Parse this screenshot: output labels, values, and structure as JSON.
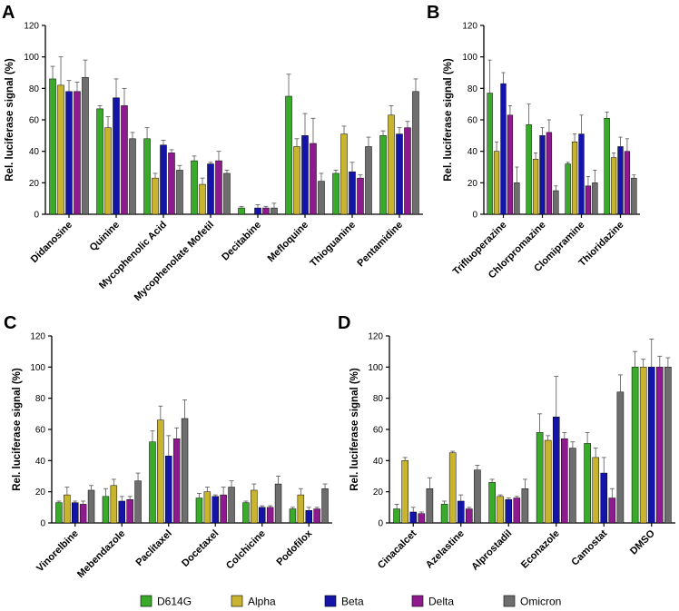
{
  "colors": {
    "D614G": "#3aaa2a",
    "Alpha": "#c8b42e",
    "Beta": "#1414a8",
    "Delta": "#8f1a8f",
    "Omicron": "#6e6e6e"
  },
  "legend": [
    "D614G",
    "Alpha",
    "Beta",
    "Delta",
    "Omicron"
  ],
  "chart_data": [
    {
      "panel": "A",
      "type": "bar",
      "ylabel": "Rel. luciferase signal (%)",
      "ylim": [
        0,
        120
      ],
      "yticks": [
        0,
        20,
        40,
        60,
        80,
        100,
        120
      ],
      "categories": [
        "Didanosine",
        "Quinine",
        "Mycophenolic Acid",
        "Mycophenolate Mofetil",
        "Decitabine",
        "Mefloquine",
        "Thioguanine",
        "Pentamidine"
      ],
      "series": [
        {
          "name": "D614G",
          "values": [
            86,
            67,
            48,
            34,
            4,
            75,
            26,
            50
          ],
          "errors": [
            8,
            2,
            7,
            3,
            1,
            14,
            2,
            3
          ]
        },
        {
          "name": "Alpha",
          "values": [
            82,
            55,
            23,
            19,
            0,
            43,
            51,
            63
          ],
          "errors": [
            18,
            7,
            3,
            4,
            0,
            5,
            5,
            6
          ]
        },
        {
          "name": "Beta",
          "values": [
            78,
            74,
            44,
            32,
            4,
            50,
            27,
            51
          ],
          "errors": [
            7,
            12,
            3,
            1,
            2,
            14,
            6,
            4
          ]
        },
        {
          "name": "Delta",
          "values": [
            78,
            69,
            39,
            34,
            4,
            45,
            23,
            55
          ],
          "errors": [
            6,
            11,
            2,
            6,
            1,
            16,
            2,
            4
          ]
        },
        {
          "name": "Omicron",
          "values": [
            87,
            48,
            28,
            26,
            4,
            21,
            43,
            78
          ],
          "errors": [
            11,
            4,
            3,
            2,
            3,
            5,
            6,
            8
          ]
        }
      ]
    },
    {
      "panel": "B",
      "type": "bar",
      "ylabel": "Rel. luciferase signal (%)",
      "ylim": [
        0,
        120
      ],
      "yticks": [
        0,
        20,
        40,
        60,
        80,
        100,
        120
      ],
      "categories": [
        "Trifluoperazine",
        "Chlorpromazine",
        "Clomipramine",
        "Thioridazine"
      ],
      "series": [
        {
          "name": "D614G",
          "values": [
            77,
            57,
            32,
            61
          ],
          "errors": [
            21,
            13,
            1,
            4
          ]
        },
        {
          "name": "Alpha",
          "values": [
            40,
            35,
            46,
            36
          ],
          "errors": [
            6,
            4,
            5,
            3
          ]
        },
        {
          "name": "Beta",
          "values": [
            83,
            50,
            51,
            43
          ],
          "errors": [
            7,
            5,
            12,
            6
          ]
        },
        {
          "name": "Delta",
          "values": [
            63,
            52,
            18,
            40
          ],
          "errors": [
            6,
            8,
            6,
            8
          ]
        },
        {
          "name": "Omicron",
          "values": [
            20,
            15,
            20,
            23
          ],
          "errors": [
            10,
            3,
            8,
            2
          ]
        }
      ]
    },
    {
      "panel": "C",
      "type": "bar",
      "ylabel": "Rel. luciferase signal (%)",
      "ylim": [
        0,
        120
      ],
      "yticks": [
        0,
        20,
        40,
        60,
        80,
        100,
        120
      ],
      "categories": [
        "Vinorelbine",
        "Mebendazole",
        "Paclitaxel",
        "Docetaxel",
        "Colchicine",
        "Podofilox"
      ],
      "series": [
        {
          "name": "D614G",
          "values": [
            13,
            17,
            52,
            16,
            13,
            9
          ],
          "errors": [
            1,
            5,
            7,
            3,
            1,
            1
          ]
        },
        {
          "name": "Alpha",
          "values": [
            18,
            24,
            66,
            20,
            21,
            18
          ],
          "errors": [
            5,
            4,
            9,
            3,
            4,
            4
          ]
        },
        {
          "name": "Beta",
          "values": [
            13,
            14,
            43,
            17,
            10,
            8
          ],
          "errors": [
            1,
            3,
            13,
            1,
            1,
            2
          ]
        },
        {
          "name": "Delta",
          "values": [
            12,
            15,
            54,
            18,
            10,
            9
          ],
          "errors": [
            2,
            2,
            7,
            5,
            1,
            1
          ]
        },
        {
          "name": "Omicron",
          "values": [
            21,
            27,
            67,
            23,
            25,
            22
          ],
          "errors": [
            3,
            5,
            12,
            4,
            5,
            3
          ]
        }
      ]
    },
    {
      "panel": "D",
      "type": "bar",
      "ylabel": "Rel. luciferase signal (%)",
      "ylim": [
        0,
        120
      ],
      "yticks": [
        0,
        20,
        40,
        60,
        80,
        100,
        120
      ],
      "categories": [
        "Cinacalcet",
        "Azelastine",
        "Alprostadil",
        "Econazole",
        "Camostat",
        "DMSO"
      ],
      "series": [
        {
          "name": "D614G",
          "values": [
            9,
            12,
            26,
            58,
            51,
            100
          ],
          "errors": [
            3,
            2,
            2,
            12,
            7,
            10
          ]
        },
        {
          "name": "Alpha",
          "values": [
            40,
            45,
            17,
            53,
            42,
            100
          ],
          "errors": [
            2,
            1,
            1,
            3,
            6,
            5
          ]
        },
        {
          "name": "Beta",
          "values": [
            7,
            14,
            15,
            68,
            32,
            100
          ],
          "errors": [
            3,
            4,
            1,
            26,
            10,
            18
          ]
        },
        {
          "name": "Delta",
          "values": [
            6,
            9,
            16,
            54,
            16,
            100
          ],
          "errors": [
            1,
            1,
            1,
            4,
            6,
            7
          ]
        },
        {
          "name": "Omicron",
          "values": [
            22,
            34,
            22,
            48,
            84,
            100
          ],
          "errors": [
            7,
            3,
            6,
            4,
            11,
            6
          ]
        }
      ]
    }
  ]
}
